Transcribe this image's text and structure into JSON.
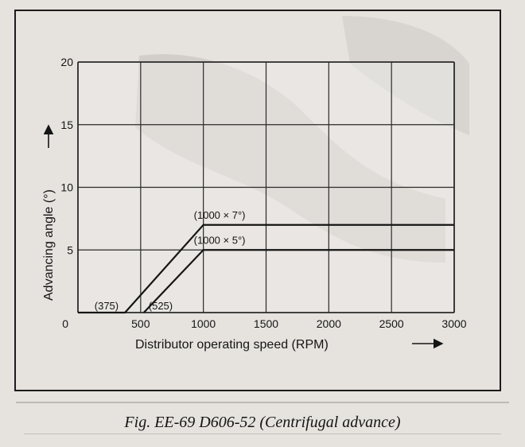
{
  "caption": "Fig. EE-69 D606-52 (Centrifugal advance)",
  "colors": {
    "ink": "#151515",
    "grid": "#2a2a2a",
    "plot_bg": "#ebeae6",
    "scan_shadow": "#b9b5b0"
  },
  "chart_data": {
    "type": "line",
    "xlabel": "Distributor operating speed (RPM)",
    "ylabel": "Advancing angle (°)",
    "xlim": [
      0,
      3000
    ],
    "ylim": [
      0,
      20
    ],
    "x_ticks": [
      0,
      500,
      1000,
      1500,
      2000,
      2500,
      3000
    ],
    "x_tick_labels": [
      "0",
      "500",
      "1000",
      "1500",
      "2000",
      "2500",
      "3000"
    ],
    "y_ticks": [
      0,
      5,
      10,
      15,
      20
    ],
    "y_tick_labels": [
      "0",
      "5",
      "10",
      "15",
      "20"
    ],
    "grid": true,
    "series": [
      {
        "x": [
          0,
          375,
          1000,
          3000
        ],
        "y": [
          0,
          0,
          7,
          7
        ]
      },
      {
        "x": [
          525,
          1000,
          3000
        ],
        "y": [
          0,
          5,
          5
        ]
      }
    ],
    "annotations": [
      {
        "text": "(1000 × 7°)",
        "x": 1000,
        "y": 7
      },
      {
        "text": "(1000 × 5°)",
        "x": 1000,
        "y": 5
      },
      {
        "text": "(375)",
        "x": 375,
        "y": 0
      },
      {
        "text": "(525)",
        "x": 525,
        "y": 0
      }
    ]
  }
}
